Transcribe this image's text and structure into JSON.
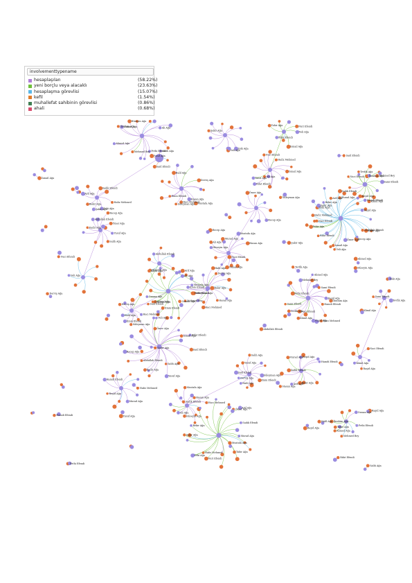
{
  "legend": {
    "title": "involvementtypename",
    "items": [
      {
        "label": "hesaplaşılan",
        "pct": "(58.22%)",
        "color": "#b07fd8"
      },
      {
        "label": "yeni borçlu veya alacaklı",
        "pct": "(23.63%)",
        "color": "#6fbf3a"
      },
      {
        "label": "hesaplaşma görevlisi",
        "pct": "(15.07%)",
        "color": "#5bb7e6"
      },
      {
        "label": "kefil",
        "pct": "(1.54%)",
        "color": "#e07b2a"
      },
      {
        "label": "muhallefat sahibinin görevlisi",
        "pct": "(0.86%)",
        "color": "#3f7f53"
      },
      {
        "label": "ahali",
        "pct": "(0.68%)",
        "color": "#d84d6e"
      }
    ]
  },
  "colors": {
    "person_node": "#9a8ce0",
    "record_node": "#e2733a"
  },
  "labels": [
    "Fethi Efendi",
    "Mehmed Bey",
    "Ahmed Ağa",
    "İbrahim Ağa",
    "Osman Ağa",
    "Hüseyin Ağa",
    "Ali Ağa",
    "Mustafa Ağa",
    "Hasan Ağa",
    "Hacı Mehmed",
    "Süleyman Ağa",
    "Emin Efendi",
    "Halil Ağa",
    "Derviş Ağa",
    "Said Efendi",
    "Yusuf Ağa",
    "Salih Ağa",
    "Kadir Ağa",
    "Abdullah Efendi",
    "Recep Ağa",
    "Ömer Ağa",
    "Veli Ağa",
    "İsmail Ağa",
    "Rifat Efendi",
    "Tahir Ağa",
    "Nuri Efendi",
    "Hafız Mehmed",
    "Zeki Ağa",
    "Şakir Ağa",
    "Bekir Ağa",
    "Arif Ağa",
    "Sadık Efendi",
    "Murad Ağa",
    "Reşid Ağa",
    "Hamdi Efendi",
    "Raşid Ağa",
    "Kâmil Ağa",
    "Naci Efendi",
    "Tevfik Ağa",
    "Sami Efendi"
  ]
}
